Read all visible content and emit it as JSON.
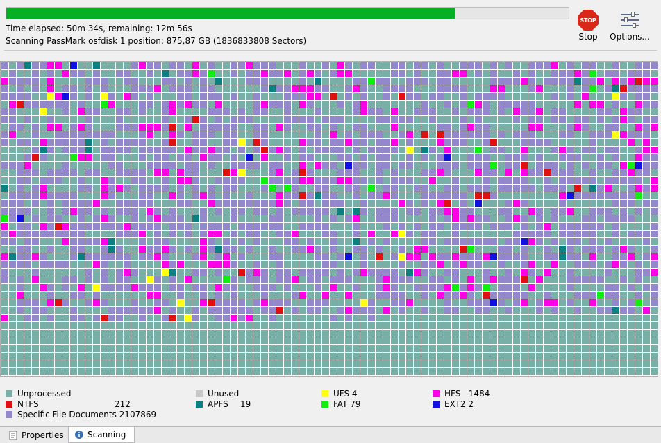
{
  "progress": {
    "percent": 79.8
  },
  "status": {
    "time_line": "Time elapsed: 50m 34s, remaining: 12m 56s",
    "scan_line": "Scanning PassMark osfdisk 1 position: 875,87 GB (1836833808 Sectors)"
  },
  "toolbar": {
    "stop_label": "Stop",
    "stop_icon_text": "STOP",
    "options_label": "Options..."
  },
  "sector_map": {
    "processed_fraction": 0.78,
    "colors": {
      "unprocessed": "#78b0a8",
      "specific": "#9488cc",
      "hfs": "#ff00e6",
      "ntfs": "#e01010",
      "fat": "#10ee10",
      "apfs": "#0b8080",
      "ufs": "#ffff10",
      "ext2": "#1010e0",
      "unused": "#c8c8c8",
      "grid": "#ffffff"
    }
  },
  "legend": {
    "unprocessed": {
      "label": "Unprocessed",
      "color": "#78b0a8"
    },
    "ntfs": {
      "label": "NTFS",
      "count": "212",
      "color": "#e01010"
    },
    "specific": {
      "label": "Specific File Documents",
      "count": "2107869",
      "color": "#9488cc"
    },
    "unused": {
      "label": "Unused",
      "color": "#c8c8c8"
    },
    "apfs": {
      "label": "APFS",
      "count": "19",
      "color": "#0b8080"
    },
    "ufs": {
      "label": "UFS",
      "count": "4",
      "color": "#ffff10"
    },
    "fat": {
      "label": "FAT",
      "count": "79",
      "color": "#10ee10"
    },
    "hfs": {
      "label": "HFS",
      "count": "1484",
      "color": "#ff00e6"
    },
    "ext2": {
      "label": "EXT2",
      "count": "2",
      "color": "#1010e0"
    }
  },
  "tabs": [
    {
      "label": "Properties",
      "icon": "properties-icon"
    },
    {
      "label": "Scanning",
      "icon": "info-icon"
    }
  ]
}
